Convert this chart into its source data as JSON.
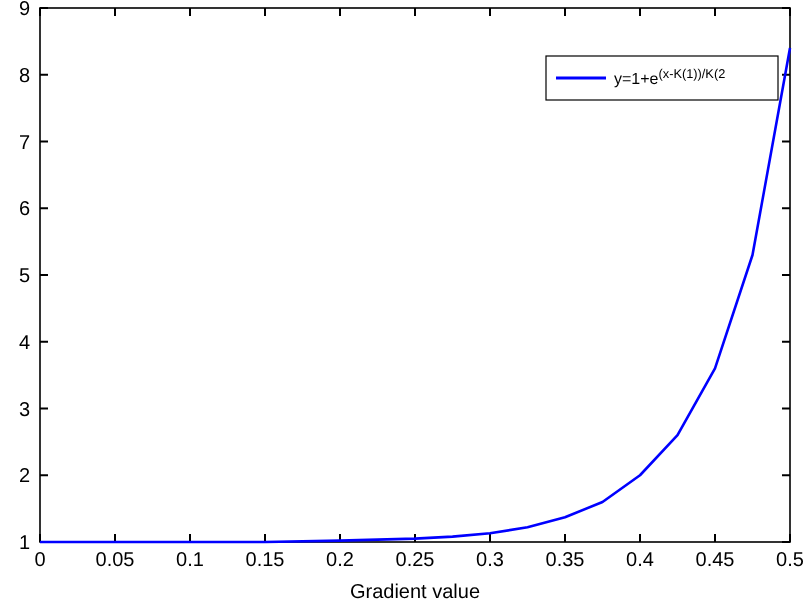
{
  "chart_data": {
    "type": "line",
    "xlabel": "Gradient value",
    "x": [
      0,
      0.05,
      0.1,
      0.15,
      0.2,
      0.25,
      0.275,
      0.3,
      0.325,
      0.35,
      0.375,
      0.4,
      0.425,
      0.45,
      0.475,
      0.5
    ],
    "series": [
      {
        "name": "y=1+e$^{(x-K(1))/K(2}$",
        "color": "#0000ff",
        "values": [
          1,
          1,
          1,
          1,
          1.02,
          1.05,
          1.08,
          1.13,
          1.22,
          1.37,
          1.6,
          2,
          2.6,
          3.6,
          5.3,
          8.4
        ]
      }
    ],
    "xlim": [
      0,
      0.5
    ],
    "xticks": [
      0,
      0.05,
      0.1,
      0.15,
      0.2,
      0.25,
      0.3,
      0.35,
      0.4,
      0.45,
      0.5
    ],
    "ylim": [
      1,
      9
    ],
    "yticks": [
      1,
      2,
      3,
      4,
      5,
      6,
      7,
      8,
      9
    ],
    "grid": false,
    "legend": "top right",
    "marker": "none",
    "line_style": "solid"
  }
}
